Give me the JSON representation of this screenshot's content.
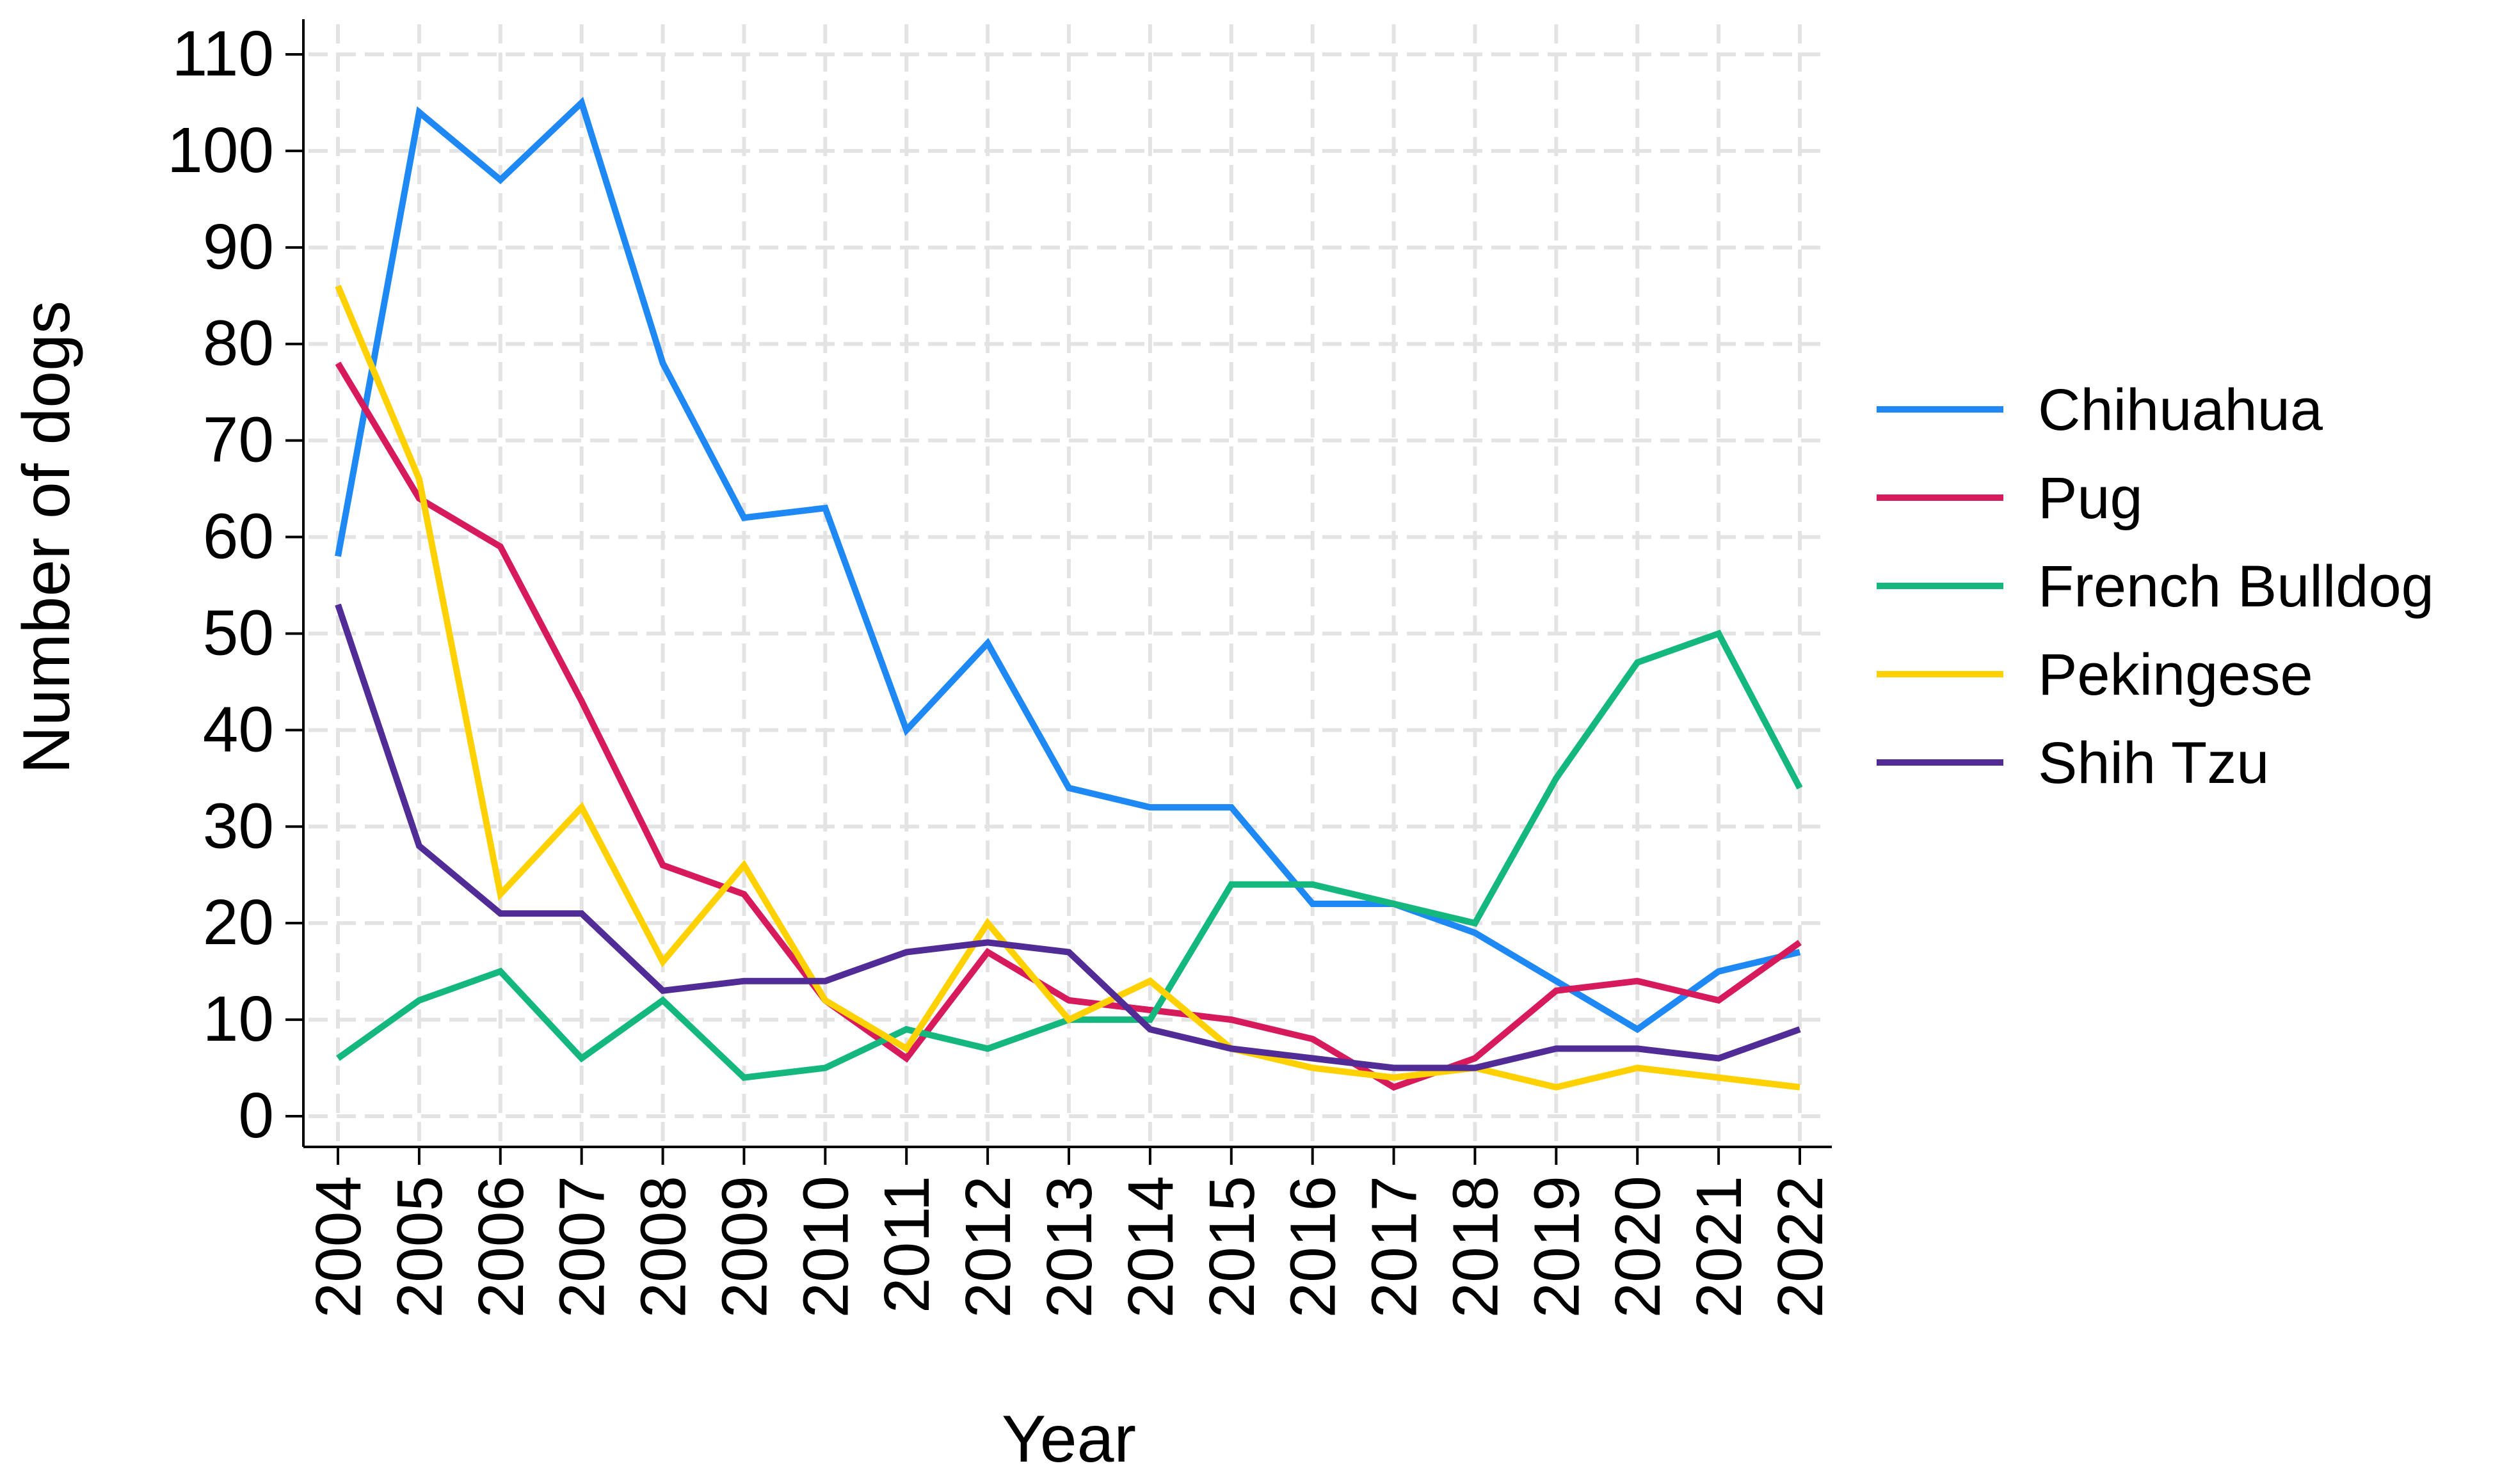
{
  "chart_data": {
    "type": "line",
    "title": "",
    "xlabel": "Year",
    "ylabel": "Number of dogs",
    "ylim": [
      0,
      110
    ],
    "yticks": [
      0,
      10,
      20,
      30,
      40,
      50,
      60,
      70,
      80,
      90,
      100,
      110
    ],
    "x": [
      "2004",
      "2005",
      "2006",
      "2007",
      "2008",
      "2009",
      "2010",
      "2011",
      "2012",
      "2013",
      "2014",
      "2015",
      "2016",
      "2017",
      "2018",
      "2019",
      "2020",
      "2021",
      "2022"
    ],
    "grid": true,
    "legend_position": "right",
    "series": [
      {
        "name": "Chihuahua",
        "color": "#1E88F5",
        "values": [
          58,
          104,
          97,
          105,
          78,
          62,
          63,
          40,
          49,
          34,
          32,
          32,
          22,
          22,
          19,
          14,
          9,
          15,
          17
        ]
      },
      {
        "name": "Pug",
        "color": "#D61A5C",
        "values": [
          78,
          64,
          59,
          43,
          26,
          23,
          12,
          6,
          17,
          12,
          11,
          10,
          8,
          3,
          6,
          13,
          14,
          12,
          18
        ]
      },
      {
        "name": "French Bulldog",
        "color": "#14B87E",
        "values": [
          6,
          12,
          15,
          6,
          12,
          4,
          5,
          9,
          7,
          10,
          10,
          24,
          24,
          22,
          20,
          35,
          47,
          50,
          34
        ]
      },
      {
        "name": "Pekingese",
        "color": "#FFD100",
        "values": [
          86,
          66,
          23,
          32,
          16,
          26,
          12,
          7,
          20,
          10,
          14,
          7,
          5,
          4,
          5,
          3,
          5,
          4,
          3
        ]
      },
      {
        "name": "Shih Tzu",
        "color": "#512C96",
        "values": [
          53,
          28,
          21,
          21,
          13,
          14,
          14,
          17,
          18,
          17,
          9,
          7,
          6,
          5,
          5,
          7,
          7,
          6,
          9
        ]
      }
    ]
  }
}
